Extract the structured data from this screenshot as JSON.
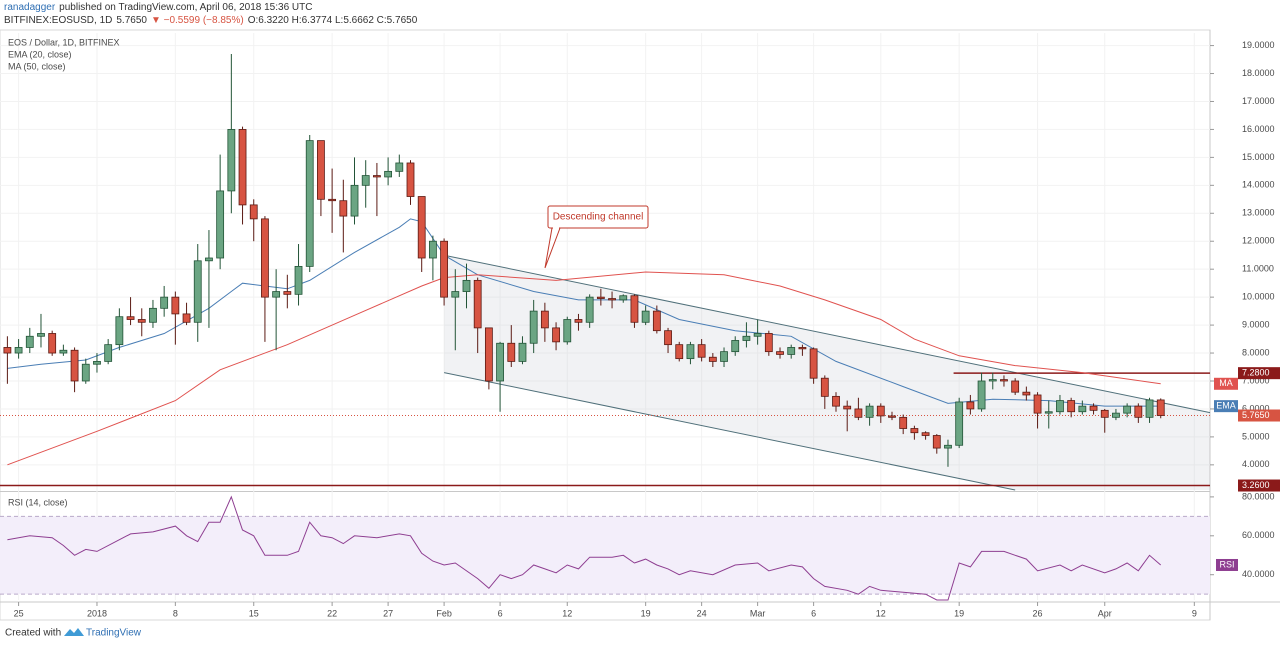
{
  "header": {
    "author": "ranadagger",
    "published": "published on TradingView.com, April 06, 2018 15:36 UTC",
    "symbol": "BITFINEX:EOSUSD, 1D",
    "price": "5.7650",
    "change": "▼ −0.5599 (−8.85%)",
    "ohlc": "O:6.3220 H:6.3774 L:5.6662 C:5.7650"
  },
  "footer": {
    "created": "Created with",
    "brand": "TradingView"
  },
  "chart_data": {
    "type": "candlestick",
    "title": "EOS / Dollar, 1D, BITFINEX",
    "up_color": "#6ba583",
    "down_color": "#d75442",
    "up_border": "#225437",
    "down_border": "#5b1a13",
    "grid": true,
    "x": [
      -8,
      -7,
      -6,
      -5,
      -4,
      -3,
      -2,
      -1,
      0,
      1,
      2,
      3,
      4,
      5,
      6,
      7,
      8,
      9,
      10,
      11,
      12,
      13,
      14,
      15,
      16,
      17,
      18,
      19,
      20,
      21,
      22,
      23,
      24,
      25,
      26,
      27,
      28,
      29,
      30,
      31,
      32,
      33,
      34,
      35,
      36,
      37,
      38,
      39,
      40,
      41,
      42,
      43,
      44,
      45,
      46,
      47,
      48,
      49,
      50,
      51,
      52,
      53,
      54,
      55,
      56,
      57,
      58,
      59,
      60,
      61,
      62,
      63,
      64,
      65,
      66,
      67,
      68,
      69,
      70,
      71,
      72,
      73,
      74,
      75,
      76,
      77,
      78,
      79,
      80,
      81,
      82,
      83,
      84,
      85,
      86,
      87,
      88,
      89,
      90,
      91,
      92,
      93,
      94,
      95
    ],
    "open": [
      8.2,
      8.0,
      8.2,
      8.6,
      8.7,
      8.0,
      8.1,
      7.0,
      7.6,
      7.7,
      8.3,
      9.3,
      9.2,
      9.1,
      9.6,
      10.0,
      9.4,
      9.1,
      11.3,
      11.4,
      13.8,
      16.0,
      13.3,
      12.8,
      10.0,
      10.2,
      10.1,
      11.1,
      15.6,
      13.5,
      13.45,
      12.9,
      14.0,
      14.35,
      14.3,
      14.5,
      14.8,
      13.6,
      11.4,
      12.0,
      10.0,
      10.2,
      10.6,
      8.9,
      7.0,
      8.35,
      7.7,
      8.35,
      9.5,
      8.9,
      8.4,
      9.2,
      9.1,
      10.0,
      9.95,
      9.9,
      10.05,
      9.1,
      9.5,
      8.8,
      8.3,
      7.8,
      8.3,
      7.85,
      7.7,
      8.05,
      8.45,
      8.6,
      8.7,
      8.05,
      7.95,
      8.2,
      8.15,
      7.1,
      6.45,
      6.1,
      6.0,
      5.7,
      6.1,
      5.75,
      5.7,
      5.3,
      5.15,
      5.05,
      4.6,
      4.7,
      6.25,
      6.0,
      7.0,
      7.05,
      7.0,
      6.6,
      6.5,
      5.85,
      5.9,
      6.3,
      5.9,
      6.1,
      5.95,
      5.7,
      5.85,
      6.1,
      5.7,
      6.322
    ],
    "high": [
      8.6,
      8.5,
      8.9,
      9.4,
      8.8,
      8.3,
      8.2,
      7.8,
      8.0,
      8.5,
      9.6,
      10.0,
      9.6,
      9.9,
      10.4,
      10.2,
      9.8,
      11.9,
      12.4,
      15.1,
      18.7,
      16.1,
      13.5,
      12.9,
      11.0,
      10.8,
      11.9,
      15.8,
      15.6,
      14.6,
      14.2,
      15.0,
      14.9,
      14.8,
      15.0,
      15.1,
      14.9,
      13.6,
      12.2,
      12.1,
      11.0,
      11.2,
      10.7,
      8.9,
      8.4,
      9.0,
      8.6,
      9.9,
      9.8,
      9.1,
      9.3,
      9.4,
      10.1,
      10.3,
      10.2,
      10.1,
      10.1,
      9.7,
      9.7,
      8.9,
      8.4,
      8.4,
      8.5,
      8.0,
      8.2,
      8.6,
      9.1,
      9.2,
      8.8,
      8.2,
      8.3,
      8.3,
      8.2,
      7.2,
      6.6,
      6.3,
      6.4,
      6.2,
      6.2,
      5.9,
      5.8,
      5.4,
      5.2,
      5.1,
      4.9,
      6.4,
      6.5,
      7.3,
      7.3,
      7.2,
      7.1,
      6.8,
      6.6,
      6.3,
      6.5,
      6.4,
      6.3,
      6.2,
      6.0,
      6.0,
      6.2,
      6.2,
      6.4,
      6.3774
    ],
    "low": [
      6.9,
      7.8,
      8.0,
      8.2,
      7.9,
      7.9,
      6.6,
      6.9,
      7.3,
      7.6,
      8.1,
      9.0,
      8.6,
      8.9,
      9.3,
      8.3,
      9.0,
      8.4,
      8.9,
      11.0,
      13.0,
      12.6,
      12.0,
      8.4,
      8.1,
      9.6,
      9.7,
      10.9,
      12.9,
      12.3,
      11.6,
      12.6,
      13.2,
      12.9,
      14.0,
      14.3,
      13.3,
      10.9,
      10.6,
      9.7,
      8.1,
      9.6,
      8.0,
      6.7,
      5.9,
      7.5,
      7.6,
      8.0,
      8.4,
      8.1,
      8.3,
      8.8,
      8.9,
      9.7,
      9.6,
      9.8,
      8.9,
      9.0,
      8.7,
      8.0,
      7.7,
      7.6,
      7.7,
      7.5,
      7.5,
      7.9,
      8.2,
      8.3,
      7.9,
      7.8,
      7.8,
      7.9,
      6.9,
      6.0,
      5.9,
      5.2,
      5.6,
      5.4,
      5.5,
      5.6,
      5.1,
      4.9,
      4.9,
      4.4,
      3.93,
      4.6,
      5.8,
      5.9,
      6.7,
      6.8,
      6.5,
      6.3,
      5.3,
      5.3,
      5.8,
      5.7,
      5.8,
      5.8,
      5.15,
      5.6,
      5.7,
      5.5,
      5.5,
      5.6662
    ],
    "close": [
      8.0,
      8.2,
      8.6,
      8.7,
      8.0,
      8.1,
      7.0,
      7.6,
      7.7,
      8.3,
      9.3,
      9.2,
      9.1,
      9.6,
      10.0,
      9.4,
      9.1,
      11.3,
      11.4,
      13.8,
      16.0,
      13.3,
      12.8,
      10.0,
      10.2,
      10.1,
      11.1,
      15.6,
      13.5,
      13.45,
      12.9,
      14.0,
      14.35,
      14.3,
      14.5,
      14.8,
      13.6,
      11.4,
      12.0,
      10.0,
      10.2,
      10.6,
      8.9,
      7.0,
      8.35,
      7.7,
      8.35,
      9.5,
      8.9,
      8.4,
      9.2,
      9.1,
      10.0,
      9.95,
      9.9,
      10.05,
      9.1,
      9.5,
      8.8,
      8.3,
      7.8,
      8.3,
      7.85,
      7.7,
      8.05,
      8.45,
      8.6,
      8.7,
      8.05,
      7.95,
      8.2,
      8.15,
      7.1,
      6.45,
      6.1,
      6.0,
      5.7,
      6.1,
      5.75,
      5.7,
      5.3,
      5.15,
      5.05,
      4.6,
      4.7,
      6.25,
      6.0,
      7.0,
      7.05,
      7.0,
      6.6,
      6.5,
      5.85,
      5.9,
      6.3,
      5.9,
      6.1,
      5.95,
      5.7,
      5.85,
      6.1,
      5.7,
      6.322,
      5.765
    ],
    "xlim": [
      -8.66,
      99.4
    ],
    "ylim": [
      3.1,
      19.45
    ],
    "xticks": [
      {
        "value": -7,
        "label": "25"
      },
      {
        "value": 0,
        "label": "2018"
      },
      {
        "value": 7,
        "label": "8"
      },
      {
        "value": 14,
        "label": "15"
      },
      {
        "value": 21,
        "label": "22"
      },
      {
        "value": 26,
        "label": "27"
      },
      {
        "value": 31,
        "label": "Feb"
      },
      {
        "value": 36,
        "label": "6"
      },
      {
        "value": 42,
        "label": "12"
      },
      {
        "value": 49,
        "label": "19"
      },
      {
        "value": 54,
        "label": "24"
      },
      {
        "value": 59,
        "label": "Mar"
      },
      {
        "value": 64,
        "label": "6"
      },
      {
        "value": 70,
        "label": "12"
      },
      {
        "value": 77,
        "label": "19"
      },
      {
        "value": 84,
        "label": "26"
      },
      {
        "value": 90,
        "label": "Apr"
      },
      {
        "value": 98,
        "label": "9"
      }
    ],
    "yticks": [
      {
        "value": 4,
        "label": "4.0000"
      },
      {
        "value": 5,
        "label": "5.0000"
      },
      {
        "value": 6,
        "label": "6.0000"
      },
      {
        "value": 7,
        "label": "7.0000"
      },
      {
        "value": 8,
        "label": "8.0000"
      },
      {
        "value": 9,
        "label": "9.0000"
      },
      {
        "value": 10,
        "label": "10.0000"
      },
      {
        "value": 11,
        "label": "11.0000"
      },
      {
        "value": 12,
        "label": "12.0000"
      },
      {
        "value": 13,
        "label": "13.0000"
      },
      {
        "value": 14,
        "label": "14.0000"
      },
      {
        "value": 15,
        "label": "15.0000"
      },
      {
        "value": 16,
        "label": "16.0000"
      },
      {
        "value": 17,
        "label": "17.0000"
      },
      {
        "value": 18,
        "label": "18.0000"
      },
      {
        "value": 19,
        "label": "19.0000"
      }
    ],
    "indicators": [
      {
        "name": "EMA (20, close)",
        "tag": "EMA",
        "color": "#4a7eb5",
        "x": [
          -8,
          -5,
          -1,
          2,
          6,
          10,
          12,
          13,
          15,
          17,
          19,
          23,
          27,
          28,
          29,
          31,
          34,
          39,
          43,
          48,
          52,
          57,
          62,
          66,
          72,
          76,
          80,
          85,
          90,
          95
        ],
        "values": [
          7.45,
          7.6,
          7.75,
          8.2,
          8.7,
          9.6,
          10.2,
          10.5,
          10.4,
          10.3,
          10.6,
          11.6,
          12.5,
          12.8,
          12.7,
          11.5,
          10.8,
          10.2,
          9.9,
          9.9,
          9.2,
          8.8,
          8.6,
          7.7,
          6.8,
          6.2,
          6.35,
          6.3,
          6.1,
          6.1
        ]
      },
      {
        "name": "MA (50, close)",
        "tag": "MA",
        "color": "#e0524f",
        "x": [
          -8,
          0,
          7,
          11,
          17,
          23,
          29,
          31,
          34,
          41,
          49,
          56,
          61,
          65,
          70,
          73,
          77,
          82,
          88,
          95
        ],
        "values": [
          4.0,
          5.2,
          6.3,
          7.4,
          8.3,
          9.35,
          10.4,
          10.7,
          10.8,
          10.6,
          10.9,
          10.8,
          10.4,
          9.9,
          9.2,
          8.5,
          7.9,
          7.55,
          7.3,
          6.9
        ]
      }
    ],
    "last_price": {
      "value": 5.765,
      "label": "5.7650",
      "color": "#d75442"
    },
    "levels": [
      {
        "value": 7.28,
        "label": "7.2800",
        "x_from": 76.5,
        "color": "#8b1a1a"
      },
      {
        "value": 3.26,
        "label": "3.2600",
        "color": "#8b1a1a"
      }
    ],
    "channel": {
      "color": "#50707a",
      "upper": {
        "x": [
          31,
          99.4
        ],
        "y": [
          11.5,
          5.87
        ]
      },
      "lower": {
        "x": [
          31,
          82
        ],
        "y": [
          7.3,
          3.1
        ]
      }
    },
    "annotation": {
      "text": "Descending channel"
    },
    "rsi": {
      "name": "RSI (14, close)",
      "tag": "RSI",
      "color": "#8e3e91",
      "x": [
        -8,
        -6,
        -4,
        -3,
        -2,
        -1,
        0,
        2,
        3,
        5,
        7,
        8,
        9,
        10,
        11,
        12,
        13,
        14,
        15,
        17,
        18,
        19,
        20,
        21,
        22,
        23,
        25,
        27,
        28,
        29,
        30,
        31,
        32,
        34,
        35,
        36,
        37,
        38,
        39,
        40,
        41,
        42,
        43,
        44,
        46,
        47,
        48,
        49,
        50,
        51,
        52,
        53,
        55,
        57,
        59,
        60,
        62,
        63,
        64,
        65,
        67,
        68,
        69,
        70,
        72,
        74,
        75,
        76,
        77,
        78,
        79,
        81,
        82,
        83,
        84,
        86,
        87,
        88,
        90,
        91,
        92,
        93,
        94,
        95
      ],
      "values": [
        58,
        60,
        59,
        55,
        50,
        53,
        52,
        58,
        61,
        62,
        65,
        60,
        57,
        67,
        67,
        80,
        63,
        60,
        50,
        50,
        52,
        67,
        60,
        59,
        56,
        60,
        59,
        61,
        60,
        51,
        47,
        45,
        46,
        38,
        33,
        40,
        38,
        40,
        45,
        43,
        41,
        45,
        43,
        49,
        49,
        50,
        46,
        48,
        45,
        43,
        40,
        42,
        40,
        45,
        46,
        42,
        45,
        44,
        38,
        34,
        32,
        30,
        34,
        32,
        31,
        30,
        27,
        27,
        46,
        44,
        52,
        52,
        50,
        48,
        42,
        45,
        42,
        45,
        41,
        43,
        46,
        42,
        50,
        45
      ],
      "ylim": [
        27,
        82
      ],
      "yticks": [
        {
          "value": 40,
          "label": "40.0000"
        },
        {
          "value": 60,
          "label": "60.0000"
        },
        {
          "value": 80,
          "label": "80.0000"
        }
      ],
      "bands": [
        30,
        70
      ]
    }
  }
}
